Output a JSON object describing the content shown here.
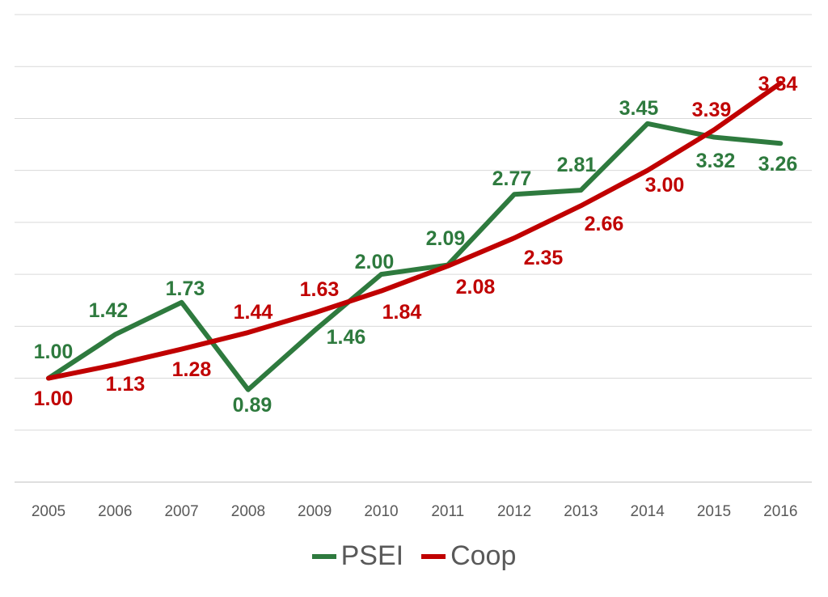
{
  "chart_data": {
    "type": "line",
    "title": "",
    "xlabel": "",
    "ylabel": "",
    "categories": [
      "2005",
      "2006",
      "2007",
      "2008",
      "2009",
      "2010",
      "2011",
      "2012",
      "2013",
      "2014",
      "2015",
      "2016"
    ],
    "ylim": [
      0,
      4.5
    ],
    "y_gridline_step": 0.5,
    "y_tick_labels_shown": false,
    "grid": true,
    "legend_position": "bottom",
    "series": [
      {
        "name": "PSEI",
        "color": "#2E7A3E",
        "values": [
          1.0,
          1.42,
          1.73,
          0.89,
          1.46,
          2.0,
          2.09,
          2.77,
          2.81,
          3.45,
          3.32,
          3.26
        ],
        "labels": [
          "1.00",
          "1.42",
          "1.73",
          "0.89",
          "1.46",
          "2.00",
          "2.09",
          "2.77",
          "2.81",
          "3.45",
          "3.32",
          "3.26"
        ]
      },
      {
        "name": "Coop",
        "color": "#C00000",
        "values": [
          1.0,
          1.13,
          1.28,
          1.44,
          1.63,
          1.84,
          2.08,
          2.35,
          2.66,
          3.0,
          3.39,
          3.84
        ],
        "labels": [
          "1.00",
          "1.13",
          "1.28",
          "1.44",
          "1.63",
          "1.84",
          "2.08",
          "2.35",
          "2.66",
          "3.00",
          "3.39",
          "3.84"
        ]
      }
    ]
  }
}
